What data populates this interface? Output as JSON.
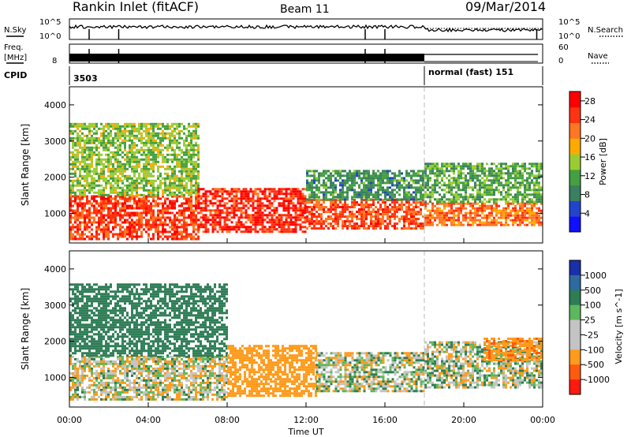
{
  "header": {
    "station": "Rankin Inlet (fitACF)",
    "beam": "Beam 11",
    "date": "09/Mar/2014"
  },
  "noise_panel": {
    "left_label": "N.Sky",
    "left_ticks": [
      "10^5",
      "10^0"
    ],
    "right_ticks": [
      "10^5",
      "10^0"
    ],
    "right_label": "N.Search",
    "right_legend_style": "dotted"
  },
  "freq_panel": {
    "left_label_line1": "Freq.",
    "left_label_line2": "[MHz]",
    "left_ticks": [
      "8"
    ],
    "right_ticks": [
      "60",
      "0"
    ],
    "right_label": "Nave",
    "right_legend_style": "dotted"
  },
  "cpid_panel": {
    "label": "CPID",
    "segments": [
      {
        "text": "3503",
        "start_hour": 0
      },
      {
        "text": "normal (fast) 151",
        "start_hour": 18
      }
    ]
  },
  "colors": {
    "power_scale": [
      "#1010ff",
      "#2244cc",
      "#3a8060",
      "#44a040",
      "#99cc33",
      "#ffaa00",
      "#ff7722",
      "#ff3311",
      "#ff0000"
    ],
    "velocity_scale": [
      "#1b2fa8",
      "#2e6aa0",
      "#2e7d56",
      "#5cb85c",
      "#c4c4c4",
      "#c4c4c4",
      "#ff9a1a",
      "#ff5a10",
      "#ff1a10"
    ]
  },
  "chart_data": [
    {
      "type": "heatmap",
      "title": "Power",
      "ylabel": "Slant Range [km]",
      "xlabel": "",
      "ylim": [
        180,
        4500
      ],
      "xlim_hours": [
        0,
        24
      ],
      "x_ticks": [
        "00:00",
        "04:00",
        "08:00",
        "12:00",
        "16:00",
        "20:00",
        "00:00"
      ],
      "y_ticks": [
        1000,
        2000,
        3000,
        4000
      ],
      "colorbar": {
        "label": "Power [dB]",
        "ticks": [
          4,
          8,
          12,
          16,
          20,
          24,
          28
        ],
        "range": [
          0,
          30
        ]
      },
      "regions": [
        {
          "t_start": 0.0,
          "t_end": 6.5,
          "r_low": 300,
          "r_high": 1500,
          "value": 25
        },
        {
          "t_start": 0.0,
          "t_end": 6.5,
          "r_low": 1500,
          "r_high": 3500,
          "value": 14
        },
        {
          "t_start": 6.5,
          "t_end": 12.0,
          "r_low": 500,
          "r_high": 1700,
          "value": 26
        },
        {
          "t_start": 12.0,
          "t_end": 18.0,
          "r_low": 600,
          "r_high": 1400,
          "value": 24
        },
        {
          "t_start": 12.0,
          "t_end": 18.0,
          "r_low": 1400,
          "r_high": 2200,
          "value": 10
        },
        {
          "t_start": 18.0,
          "t_end": 24.0,
          "r_low": 700,
          "r_high": 1300,
          "value": 22
        },
        {
          "t_start": 18.0,
          "t_end": 24.0,
          "r_low": 1300,
          "r_high": 2400,
          "value": 12
        }
      ]
    },
    {
      "type": "heatmap",
      "title": "Velocity",
      "ylabel": "Slant Range [km]",
      "xlabel": "Time UT",
      "ylim": [
        180,
        4500
      ],
      "xlim_hours": [
        0,
        24
      ],
      "x_ticks": [
        "00:00",
        "04:00",
        "08:00",
        "12:00",
        "16:00",
        "20:00",
        "00:00"
      ],
      "y_ticks": [
        1000,
        2000,
        3000,
        4000
      ],
      "colorbar": {
        "label": "Velocity [m s^-1]",
        "ticks": [
          1000,
          500,
          100,
          25,
          -25,
          -100,
          -500,
          -1000
        ]
      },
      "regions": [
        {
          "t_start": 0.0,
          "t_end": 8.0,
          "r_low": 400,
          "r_high": 1600,
          "value": -50,
          "note": "green"
        },
        {
          "t_start": 0.0,
          "t_end": 8.0,
          "r_low": 1600,
          "r_high": 3600,
          "value": 300
        },
        {
          "t_start": 8.0,
          "t_end": 12.5,
          "r_low": 500,
          "r_high": 1900,
          "value": -300
        },
        {
          "t_start": 12.5,
          "t_end": 18.0,
          "r_low": 600,
          "r_high": 1700,
          "value": 0
        },
        {
          "t_start": 18.0,
          "t_end": 24.0,
          "r_low": 700,
          "r_high": 2000,
          "value": 0
        },
        {
          "t_start": 21.0,
          "t_end": 24.0,
          "r_low": 1500,
          "r_high": 2100,
          "value": -400
        }
      ]
    }
  ]
}
